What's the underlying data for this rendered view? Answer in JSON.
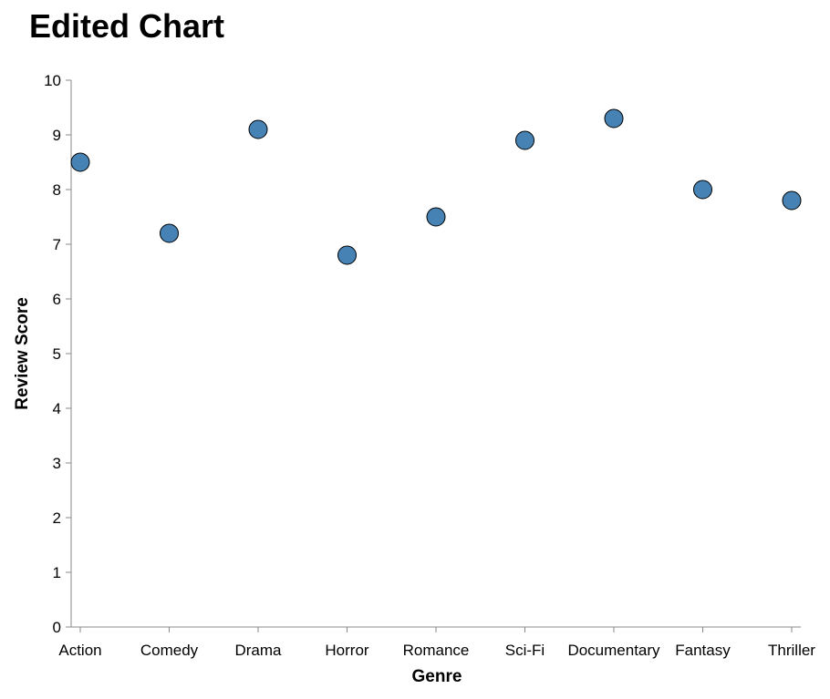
{
  "chart_data": {
    "type": "scatter",
    "title": "Edited Chart",
    "xlabel": "Genre",
    "ylabel": "Review Score",
    "categories": [
      "Action",
      "Comedy",
      "Drama",
      "Horror",
      "Romance",
      "Sci-Fi",
      "Documentary",
      "Fantasy",
      "Thriller"
    ],
    "series": [
      {
        "values": [
          8.5,
          7.2,
          9.1,
          6.8,
          7.5,
          8.9,
          9.3,
          8.0,
          7.8
        ]
      }
    ],
    "ylim": [
      0,
      10
    ],
    "yticks": [
      0,
      1,
      2,
      3,
      4,
      5,
      6,
      7,
      8,
      9,
      10
    ],
    "grid": false,
    "legend": "none",
    "colors": {
      "point_fill": "#4682b4",
      "point_stroke": "#000000",
      "axis": "#888888"
    }
  }
}
